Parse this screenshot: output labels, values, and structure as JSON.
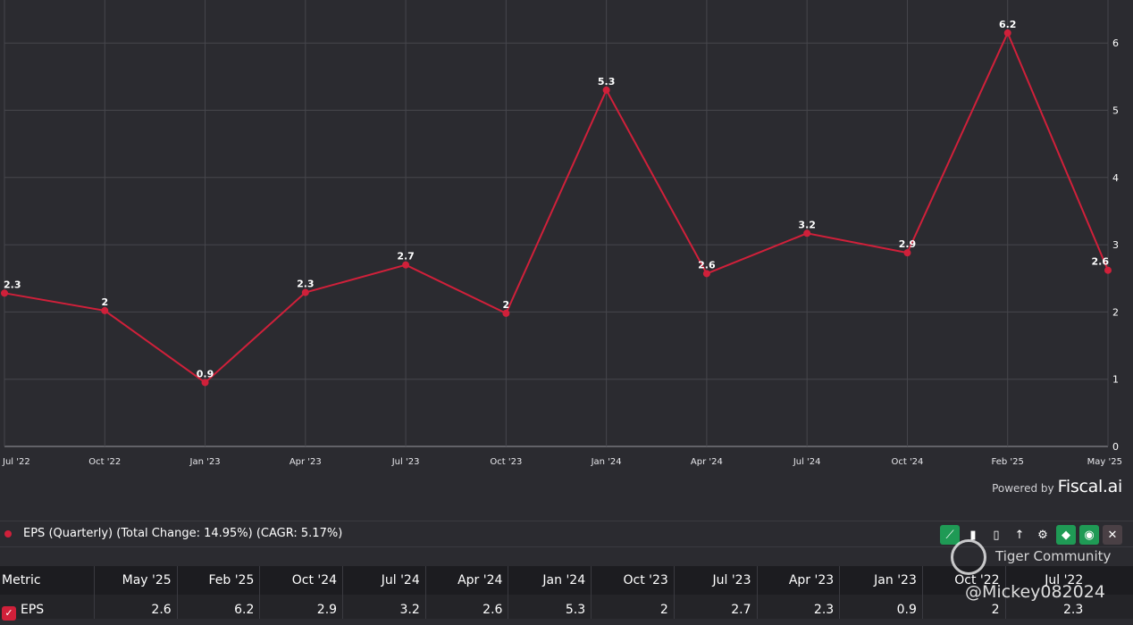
{
  "chart_data": {
    "type": "line",
    "categories": [
      "Jul '22",
      "Oct '22",
      "Jan '23",
      "Apr '23",
      "Jul '23",
      "Oct '23",
      "Jan '24",
      "Apr '24",
      "Jul '24",
      "Oct '24",
      "Feb '25",
      "May '25"
    ],
    "series": [
      {
        "values": [
          2.28,
          2.02,
          0.95,
          2.29,
          2.7,
          1.98,
          5.3,
          2.57,
          3.17,
          2.88,
          6.15,
          2.62
        ],
        "labels": [
          "2.3",
          "2",
          "0.9",
          "2.3",
          "2.7",
          "2",
          "5.3",
          "2.6",
          "3.2",
          "2.9",
          "6.2",
          "2.6"
        ]
      }
    ],
    "y_ticks": [
      "0",
      "1",
      "2",
      "3",
      "4",
      "5",
      "6"
    ],
    "ylim": [
      0,
      6.6
    ],
    "grid": true,
    "y_axis_side": "right",
    "line_color": "#d0203a"
  },
  "branding": {
    "powered_by": "Powered by",
    "brand": "Fiscal.ai"
  },
  "legend": {
    "text": "EPS (Quarterly) (Total Change: 14.95%) (CAGR: 5.17%)"
  },
  "table": {
    "headers": [
      "Metric",
      "May '25",
      "Feb '25",
      "Oct '24",
      "Jul '24",
      "Apr '24",
      "Jan '24",
      "Oct '23",
      "Jul '23",
      "Apr '23",
      "Jan '23",
      "Oct '22",
      "Jul '22"
    ],
    "row": {
      "metric": "EPS",
      "values": [
        "2.6",
        "6.2",
        "2.9",
        "3.2",
        "2.6",
        "5.3",
        "2",
        "2.7",
        "2.3",
        "0.9",
        "2",
        "2.3"
      ]
    }
  },
  "watermark": {
    "name": "Tiger Community",
    "handle": "@Mickey082024"
  }
}
